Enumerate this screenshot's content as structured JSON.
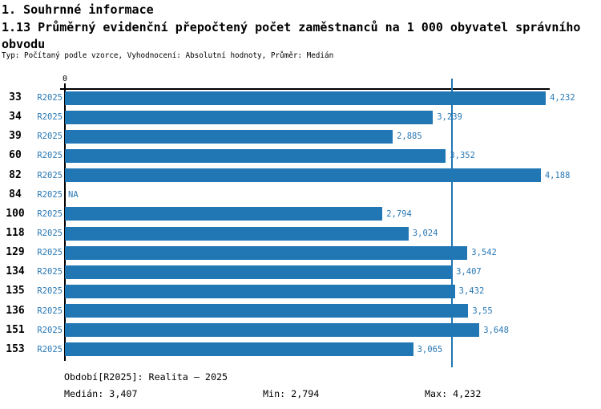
{
  "header": {
    "section_title": "1. Souhrnné informace",
    "indicator_title": "1.13 Průměrný evidenční přepočtený počet zaměstnanců na 1 000 obyvatel správního obvodu",
    "meta_line": "Typ: Počítaný podle vzorce, Vyhodnocení: Absolutní hodnoty, Průměr: Medián"
  },
  "chart_data": {
    "type": "bar",
    "orientation": "horizontal",
    "title": "1.13 Průměrný evidenční přepočtený počet zaměstnanců na 1 000 obyvatel správního obvodu",
    "categories": [
      "33",
      "34",
      "39",
      "60",
      "82",
      "84",
      "100",
      "118",
      "129",
      "134",
      "135",
      "136",
      "151",
      "153"
    ],
    "series": [
      {
        "name": "R2025",
        "values": [
          4.232,
          3.239,
          2.885,
          3.352,
          4.188,
          null,
          2.794,
          3.024,
          3.542,
          3.407,
          3.432,
          3.55,
          3.648,
          3.065
        ],
        "value_labels": [
          "4,232",
          "3,239",
          "2,885",
          "3,352",
          "4,188",
          "NA",
          "2,794",
          "3,024",
          "3,542",
          "3,407",
          "3,432",
          "3,55",
          "3,648",
          "3,065"
        ]
      }
    ],
    "na_label": "NA",
    "axis_zero_label": "0",
    "xlim": [
      0,
      4.72
    ],
    "median_value": 3.407,
    "min_value": 2.794,
    "max_value": 4.232,
    "grid": false,
    "legend": "none",
    "colors": {
      "bar": "#2176b4",
      "blue_text": "#2878b5",
      "median_line": "#2176b4",
      "axis": "#000000"
    }
  },
  "footer": {
    "period_label": "Období[R2025]: Realita – 2025",
    "median_label": "Medián: 3,407",
    "min_label": "Min: 2,794",
    "max_label": "Max: 4,232"
  }
}
